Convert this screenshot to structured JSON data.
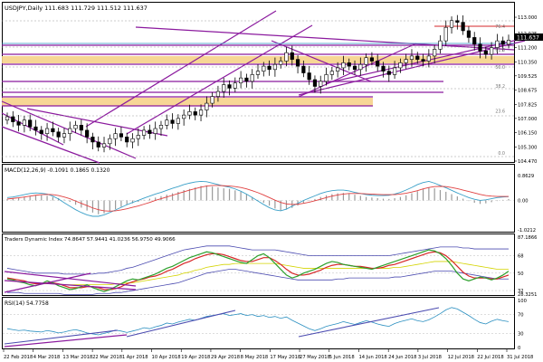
{
  "chart_data": [
    {
      "type": "candlestick",
      "panel": "price",
      "title": "USDJPY,Daily  111.683 111.729 111.512 111.637",
      "ylim": [
        104.47,
        113.7
      ],
      "y_ticks": [
        "113.000",
        "112.025",
        "111.200",
        "110.350",
        "109.525",
        "108.675",
        "107.825",
        "107.000",
        "106.150",
        "105.300",
        "104.470"
      ],
      "current_price_label": "111.637",
      "fib_labels": [
        {
          "text": "76.4",
          "price": 112.3
        },
        {
          "text": "61.8",
          "price": 110.92
        },
        {
          "text": "50.0",
          "price": 109.88
        },
        {
          "text": "38.2",
          "price": 108.75
        },
        {
          "text": "23.6",
          "price": 107.3
        },
        {
          "text": "0.0",
          "price": 104.8
        }
      ],
      "candles_close": [
        107.1,
        106.8,
        106.6,
        106.9,
        106.5,
        106.3,
        106.1,
        106.4,
        106.2,
        105.9,
        106.1,
        106.4,
        106.6,
        106.3,
        105.9,
        105.6,
        105.3,
        105.5,
        105.8,
        106.1,
        105.9,
        105.6,
        105.8,
        106.0,
        106.3,
        106.1,
        106.4,
        106.6,
        106.9,
        106.7,
        107.0,
        107.2,
        107.4,
        107.2,
        107.5,
        107.9,
        108.3,
        108.6,
        109.0,
        108.8,
        109.1,
        109.4,
        109.2,
        109.6,
        109.8,
        110.1,
        109.9,
        110.2,
        110.4,
        110.9,
        110.5,
        110.1,
        109.7,
        109.3,
        108.9,
        109.2,
        109.6,
        109.8,
        110.0,
        110.3,
        110.1,
        109.9,
        110.2,
        110.6,
        110.4,
        110.1,
        109.8,
        109.6,
        110.0,
        110.3,
        110.5,
        110.7,
        110.5,
        110.4,
        110.7,
        111.1,
        111.6,
        112.4,
        112.8,
        112.7,
        112.2,
        111.8,
        111.4,
        111.0,
        110.8,
        111.2,
        111.6,
        111.4,
        111.64
      ]
    },
    {
      "type": "line",
      "panel": "macd",
      "title": "MACD(12,26,9) -0.1091 0.1865 0.1320",
      "ylim": [
        -1.0212,
        0.8629
      ],
      "y_ticks": [
        "0.8629",
        "0.00",
        "-1.0212"
      ],
      "histogram": [
        0.05,
        0.08,
        0.1,
        0.12,
        0.15,
        0.17,
        0.18,
        0.16,
        0.12,
        0.08,
        0.03,
        -0.05,
        -0.15,
        -0.25,
        -0.35,
        -0.42,
        -0.48,
        -0.45,
        -0.38,
        -0.3,
        -0.22,
        -0.15,
        -0.1,
        -0.05,
        0.02,
        0.06,
        0.1,
        0.15,
        0.2,
        0.25,
        0.3,
        0.36,
        0.4,
        0.45,
        0.5,
        0.52,
        0.48,
        0.45,
        0.42,
        0.4,
        0.35,
        0.3,
        0.22,
        0.12,
        0.02,
        -0.08,
        -0.18,
        -0.28,
        -0.35,
        -0.32,
        -0.26,
        -0.18,
        -0.1,
        -0.02,
        0.05,
        0.12,
        0.18,
        0.22,
        0.25,
        0.26,
        0.24,
        0.2,
        0.16,
        0.12,
        0.1,
        0.08,
        0.06,
        0.05,
        0.08,
        0.12,
        0.18,
        0.25,
        0.32,
        0.4,
        0.45,
        0.42,
        0.36,
        0.3,
        0.22,
        0.14,
        0.06,
        -0.02,
        -0.08,
        -0.12,
        -0.1,
        -0.06,
        -0.02,
        0.02,
        0.05
      ],
      "series": [
        {
          "name": "",
          "values": [
            0.1,
            0.12,
            0.16,
            0.2,
            0.24,
            0.26,
            0.25,
            0.22,
            0.15,
            0.05,
            -0.08,
            -0.2,
            -0.32,
            -0.42,
            -0.5,
            -0.55,
            -0.55,
            -0.5,
            -0.42,
            -0.33,
            -0.24,
            -0.15,
            -0.07,
            0.0,
            0.08,
            0.15,
            0.22,
            0.28,
            0.35,
            0.42,
            0.48,
            0.55,
            0.6,
            0.64,
            0.66,
            0.65,
            0.6,
            0.55,
            0.5,
            0.46,
            0.4,
            0.32,
            0.22,
            0.1,
            -0.02,
            -0.14,
            -0.25,
            -0.33,
            -0.36,
            -0.3,
            -0.2,
            -0.1,
            0.0,
            0.08,
            0.16,
            0.24,
            0.3,
            0.34,
            0.36,
            0.36,
            0.33,
            0.28,
            0.24,
            0.2,
            0.18,
            0.17,
            0.17,
            0.18,
            0.22,
            0.28,
            0.36,
            0.45,
            0.55,
            0.62,
            0.66,
            0.6,
            0.52,
            0.44,
            0.35,
            0.26,
            0.18,
            0.1,
            0.04,
            0.0,
            0.02,
            0.06,
            0.1,
            0.12,
            0.13
          ]
        },
        {
          "name": "",
          "values": [
            0.05,
            0.07,
            0.09,
            0.12,
            0.15,
            0.18,
            0.2,
            0.21,
            0.2,
            0.17,
            0.12,
            0.06,
            -0.02,
            -0.1,
            -0.18,
            -0.26,
            -0.32,
            -0.36,
            -0.37,
            -0.36,
            -0.33,
            -0.29,
            -0.24,
            -0.19,
            -0.13,
            -0.07,
            0.0,
            0.06,
            0.12,
            0.18,
            0.24,
            0.3,
            0.36,
            0.41,
            0.46,
            0.5,
            0.52,
            0.52,
            0.51,
            0.5,
            0.48,
            0.45,
            0.4,
            0.34,
            0.27,
            0.19,
            0.1,
            0.01,
            -0.07,
            -0.12,
            -0.14,
            -0.13,
            -0.1,
            -0.06,
            -0.01,
            0.04,
            0.1,
            0.15,
            0.19,
            0.22,
            0.24,
            0.24,
            0.24,
            0.23,
            0.22,
            0.21,
            0.2,
            0.2,
            0.2,
            0.22,
            0.25,
            0.29,
            0.34,
            0.4,
            0.45,
            0.48,
            0.49,
            0.48,
            0.45,
            0.41,
            0.36,
            0.31,
            0.26,
            0.21,
            0.17,
            0.15,
            0.14,
            0.14,
            0.14
          ]
        }
      ]
    },
    {
      "type": "line",
      "panel": "tdi",
      "title": "Traders Dynamic Index 74.8647 57.9441 41.0236 56.9750 49.9066",
      "ylim": [
        28.3251,
        87.1866
      ],
      "y_ticks": [
        "87.1866",
        "68",
        "50",
        "32",
        "28.3251"
      ],
      "series": [
        {
          "name": "",
          "color": "#2ca02c",
          "values": [
            44,
            43,
            41,
            40,
            38,
            37,
            39,
            42,
            40,
            37,
            35,
            33,
            34,
            36,
            38,
            35,
            33,
            31,
            33,
            36,
            39,
            42,
            44,
            43,
            45,
            47,
            49,
            52,
            55,
            57,
            60,
            63,
            66,
            68,
            70,
            72,
            71,
            69,
            67,
            65,
            63,
            61,
            60,
            64,
            68,
            70,
            66,
            60,
            54,
            48,
            45,
            47,
            50,
            52,
            54,
            57,
            60,
            62,
            61,
            59,
            58,
            57,
            56,
            55,
            54,
            56,
            58,
            60,
            62,
            64,
            66,
            68,
            70,
            72,
            74,
            73,
            70,
            65,
            58,
            50,
            44,
            42,
            44,
            46,
            45,
            43,
            45,
            48,
            52
          ]
        },
        {
          "name": "",
          "color": "#d62728",
          "values": [
            45,
            44,
            43,
            42,
            40,
            39,
            39,
            40,
            40,
            39,
            37,
            35,
            35,
            35,
            36,
            36,
            35,
            33,
            33,
            34,
            36,
            39,
            41,
            43,
            44,
            46,
            47,
            49,
            52,
            54,
            57,
            60,
            62,
            65,
            67,
            69,
            70,
            70,
            69,
            67,
            65,
            63,
            62,
            62,
            64,
            66,
            66,
            63,
            59,
            54,
            50,
            48,
            48,
            49,
            51,
            53,
            56,
            58,
            59,
            59,
            58,
            57,
            57,
            56,
            55,
            55,
            56,
            58,
            59,
            61,
            63,
            65,
            67,
            69,
            71,
            72,
            71,
            68,
            63,
            57,
            51,
            47,
            45,
            45,
            45,
            44,
            44,
            46,
            48
          ]
        },
        {
          "name": "",
          "color": "#d4d400",
          "values": [
            42,
            42,
            41,
            41,
            40,
            40,
            39,
            39,
            39,
            39,
            38,
            38,
            38,
            38,
            38,
            38,
            38,
            38,
            38,
            39,
            39,
            40,
            40,
            41,
            42,
            43,
            44,
            45,
            46,
            47,
            48,
            50,
            51,
            53,
            54,
            56,
            57,
            58,
            59,
            59,
            60,
            60,
            60,
            60,
            60,
            60,
            60,
            60,
            59,
            58,
            57,
            56,
            55,
            55,
            55,
            55,
            55,
            55,
            55,
            55,
            55,
            55,
            55,
            55,
            55,
            55,
            55,
            55,
            56,
            56,
            57,
            58,
            59,
            60,
            61,
            62,
            62,
            62,
            62,
            61,
            60,
            59,
            58,
            57,
            56,
            55,
            54,
            54,
            54
          ]
        },
        {
          "name": "",
          "color": "#4b4bb0",
          "values": [
            55,
            54,
            53,
            52,
            51,
            50,
            50,
            50,
            50,
            50,
            49,
            49,
            49,
            49,
            49,
            49,
            50,
            50,
            51,
            52,
            53,
            55,
            56,
            58,
            60,
            62,
            64,
            66,
            68,
            70,
            72,
            74,
            75,
            76,
            77,
            78,
            78,
            78,
            78,
            78,
            77,
            76,
            75,
            74,
            74,
            74,
            74,
            74,
            73,
            72,
            71,
            70,
            69,
            68,
            68,
            68,
            68,
            68,
            68,
            68,
            68,
            68,
            68,
            68,
            68,
            68,
            68,
            68,
            69,
            70,
            71,
            72,
            73,
            74,
            75,
            76,
            77,
            77,
            77,
            77,
            76,
            76,
            75,
            75,
            75,
            75,
            75,
            75,
            75
          ]
        },
        {
          "name": "",
          "color": "#4b4bb0",
          "values": [
            30,
            30,
            30,
            29,
            29,
            29,
            29,
            29,
            29,
            29,
            28,
            28,
            28,
            28,
            28,
            28,
            29,
            29,
            29,
            30,
            30,
            31,
            32,
            33,
            34,
            35,
            36,
            37,
            38,
            39,
            40,
            42,
            44,
            46,
            48,
            50,
            51,
            52,
            53,
            54,
            54,
            53,
            52,
            51,
            50,
            49,
            48,
            47,
            46,
            45,
            44,
            43,
            43,
            43,
            43,
            43,
            43,
            43,
            44,
            44,
            45,
            45,
            45,
            45,
            45,
            45,
            45,
            45,
            46,
            46,
            47,
            48,
            49,
            50,
            51,
            52,
            52,
            52,
            52,
            51,
            50,
            49,
            48,
            47,
            46,
            45,
            44,
            44,
            44
          ]
        }
      ]
    },
    {
      "type": "line",
      "panel": "rsi",
      "title": "RSI(14) 54.7758",
      "ylim": [
        0,
        100
      ],
      "y_ticks": [
        "100",
        "70",
        "30",
        "0"
      ],
      "series": [
        {
          "name": "",
          "values": [
            40,
            38,
            36,
            37,
            35,
            34,
            33,
            36,
            34,
            31,
            33,
            36,
            38,
            35,
            31,
            29,
            27,
            30,
            33,
            37,
            35,
            32,
            35,
            38,
            42,
            40,
            44,
            47,
            52,
            50,
            54,
            57,
            60,
            58,
            62,
            66,
            68,
            70,
            72,
            68,
            70,
            72,
            68,
            70,
            66,
            68,
            64,
            66,
            62,
            65,
            58,
            52,
            46,
            40,
            36,
            40,
            45,
            48,
            51,
            55,
            52,
            49,
            53,
            57,
            54,
            50,
            47,
            45,
            51,
            55,
            58,
            61,
            57,
            55,
            59,
            65,
            72,
            80,
            85,
            82,
            75,
            68,
            60,
            53,
            50,
            56,
            60,
            57,
            55
          ]
        }
      ]
    }
  ],
  "x_axis_labels": [
    "22 Feb 2018",
    "4 Mar 2018",
    "13 Mar 2018",
    "22 Mar 2018",
    "1 Apr 2018",
    "10 Apr 2018",
    "19 Apr 2018",
    "29 Apr 2018",
    "8 May 2018",
    "17 May 2018",
    "27 May 2018",
    "5 Jun 2018",
    "14 Jun 2018",
    "24 Jun 2018",
    "3 Jul 2018",
    "12 Jul 2018",
    "22 Jul 2018",
    "31 Jul 2018"
  ],
  "colors": {
    "bull": "#ffffff",
    "bear": "#000000",
    "trendline": "#8b1a9e",
    "zone": "#f6d18a",
    "macd_signal": "#e04040",
    "macd_main": "#3aa0c8",
    "tdi_green": "#2ca02c",
    "tdi_red": "#d62728",
    "tdi_yellow": "#d4d400",
    "tdi_band": "#4b4bb0",
    "rsi_line": "#2a8fc0"
  }
}
